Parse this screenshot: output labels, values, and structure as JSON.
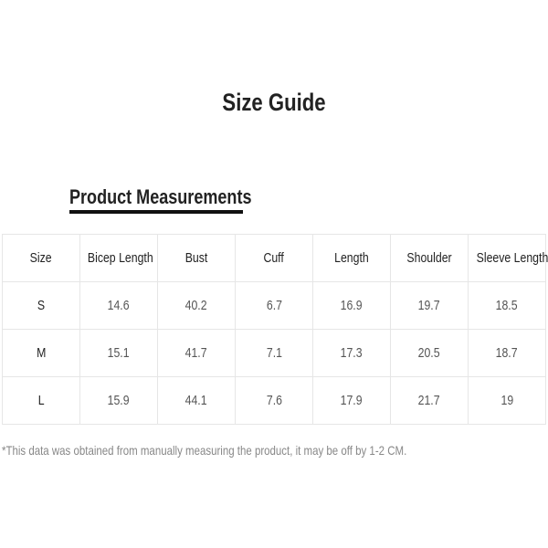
{
  "title": "Size Guide",
  "section_title": "Product Measurements",
  "table": {
    "headers": [
      "Size",
      "Bicep Length",
      "Bust",
      "Cuff",
      "Length",
      "Shoulder",
      "Sleeve Length"
    ],
    "rows": [
      [
        "S",
        "14.6",
        "40.2",
        "6.7",
        "16.9",
        "19.7",
        "18.5"
      ],
      [
        "M",
        "15.1",
        "41.7",
        "7.1",
        "17.3",
        "20.5",
        "18.7"
      ],
      [
        "L",
        "15.9",
        "44.1",
        "7.6",
        "17.9",
        "21.7",
        "19"
      ]
    ]
  },
  "note": "*This data was obtained from manually measuring the product, it may be off by 1-2 CM."
}
